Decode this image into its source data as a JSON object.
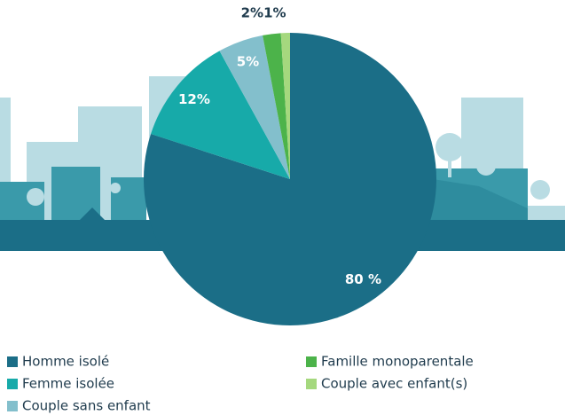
{
  "chart_data": {
    "type": "pie",
    "series": [
      {
        "name": "Homme isolé",
        "color": "#1b6e87",
        "values": [
          80
        ],
        "value_labels": [
          "80 %"
        ]
      },
      {
        "name": "Femme isolée",
        "color": "#17aaa9",
        "values": [
          12
        ],
        "value_labels": [
          "12%"
        ]
      },
      {
        "name": "Couple sans enfant",
        "color": "#83bfcc",
        "values": [
          5
        ],
        "value_labels": [
          "5%"
        ]
      },
      {
        "name": "Famille monoparentale",
        "color": "#4cb34a",
        "values": [
          2
        ],
        "value_labels": [
          "2%"
        ]
      },
      {
        "name": "Couple avec enfant(s)",
        "color": "#a5d87e",
        "values": [
          1
        ],
        "value_labels": [
          "1%"
        ]
      }
    ]
  }
}
